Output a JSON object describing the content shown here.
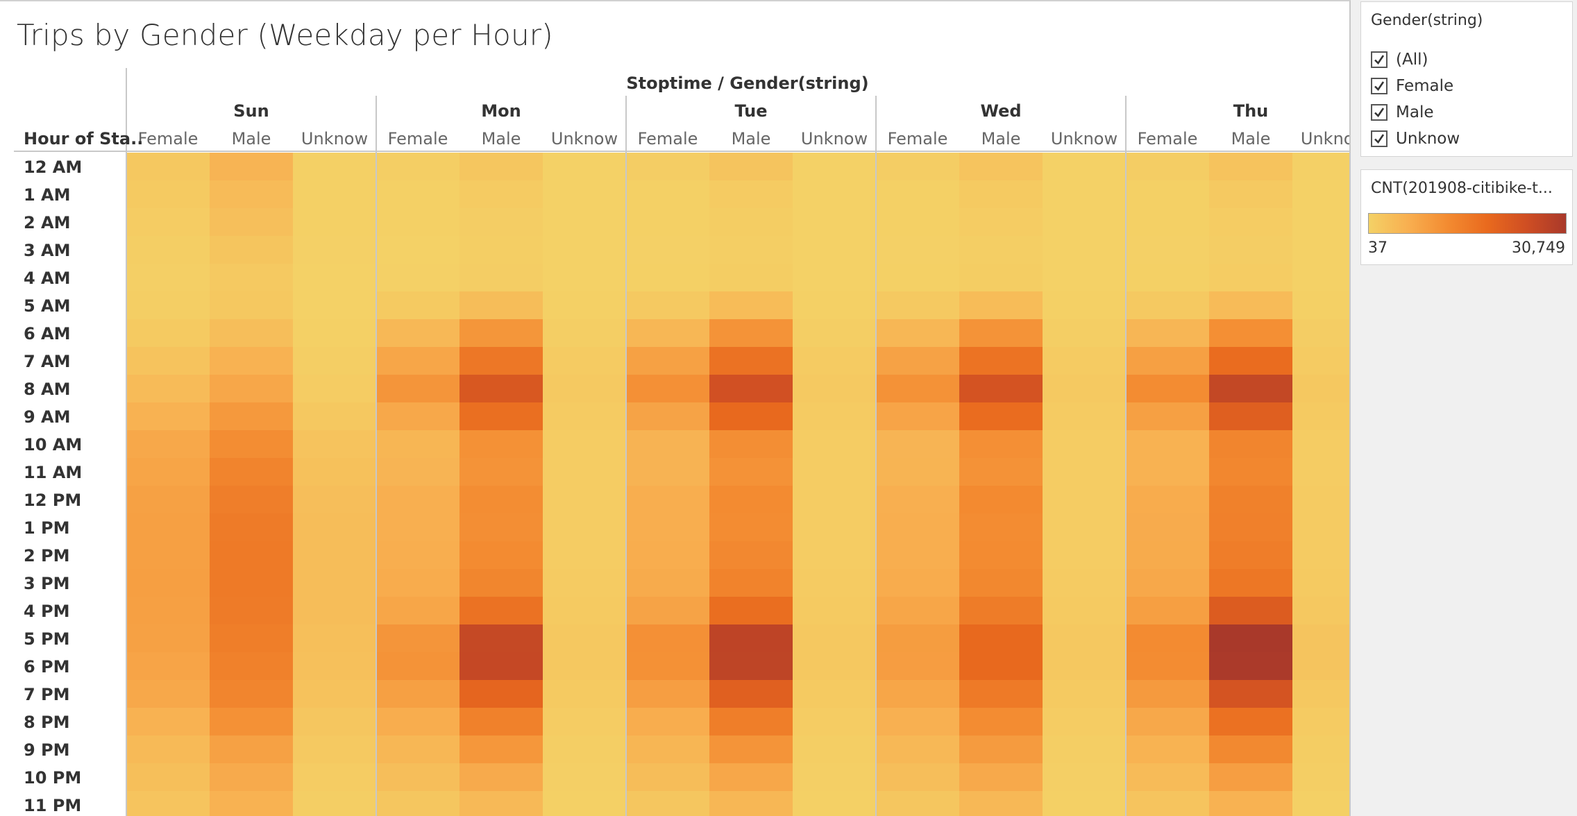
{
  "title": "Trips by Gender (Weekday per Hour)",
  "filter": {
    "title": "Gender(string)",
    "items": [
      {
        "label": "(All)",
        "checked": true
      },
      {
        "label": "Female",
        "checked": true
      },
      {
        "label": "Male",
        "checked": true
      },
      {
        "label": "Unknow",
        "checked": true
      }
    ]
  },
  "legend": {
    "title": "CNT(201908-citibike-t...",
    "min_label": "37",
    "max_label": "30,749",
    "colors": [
      "#f4d166",
      "#f8af50",
      "#f38b31",
      "#e96a1e",
      "#cf4e23",
      "#a9392a"
    ]
  },
  "chart_data": {
    "type": "heatmap",
    "title": "Trips by Gender (Weekday per Hour)",
    "top_header": "Stoptime / Gender(string)",
    "row_header": "Hour of Sta..",
    "days": [
      "Sun",
      "Mon",
      "Tue",
      "Wed",
      "Thu"
    ],
    "genders": [
      "Female",
      "Male",
      "Unknow"
    ],
    "hours": [
      "12 AM",
      "1 AM",
      "2 AM",
      "3 AM",
      "4 AM",
      "5 AM",
      "6 AM",
      "7 AM",
      "8 AM",
      "9 AM",
      "10 AM",
      "11 AM",
      "12 PM",
      "1 PM",
      "2 PM",
      "3 PM",
      "4 PM",
      "5 PM",
      "6 PM",
      "7 PM",
      "8 PM",
      "9 PM",
      "10 PM",
      "11 PM"
    ],
    "color_range": [
      37,
      30749
    ],
    "values": {
      "Sun": {
        "Female": [
          1700,
          1300,
          900,
          500,
          400,
          500,
          1300,
          2600,
          4000,
          5700,
          7300,
          7900,
          8500,
          8800,
          8800,
          8900,
          8800,
          8500,
          8000,
          7300,
          5600,
          4200,
          3300,
          2400
        ],
        "Male": [
          5200,
          4000,
          3200,
          2200,
          1500,
          1600,
          3400,
          5600,
          7500,
          10000,
          12000,
          13600,
          14700,
          15300,
          15400,
          15400,
          15300,
          14800,
          14200,
          13400,
          11300,
          8600,
          7000,
          5600
        ],
        "Unknow": [
          300,
          250,
          200,
          150,
          100,
          100,
          250,
          600,
          1000,
          1700,
          2500,
          3000,
          3400,
          3600,
          3700,
          3700,
          3600,
          3300,
          3100,
          2700,
          2000,
          1400,
          1000,
          600
        ]
      },
      "Mon": {
        "Female": [
          600,
          300,
          200,
          100,
          150,
          1300,
          4500,
          7800,
          10600,
          7400,
          5000,
          5200,
          6200,
          6200,
          6300,
          6700,
          7800,
          10600,
          10900,
          8800,
          6500,
          4800,
          3400,
          2000
        ],
        "Male": [
          2000,
          1100,
          700,
          500,
          700,
          3600,
          10500,
          16000,
          22500,
          17600,
          11300,
          11000,
          12000,
          11800,
          12300,
          13300,
          17000,
          26200,
          26300,
          19500,
          14200,
          10300,
          7000,
          4300
        ],
        "Unknow": [
          100,
          60,
          40,
          37,
          40,
          200,
          600,
          1100,
          1400,
          1100,
          900,
          900,
          1000,
          1000,
          1000,
          1100,
          1300,
          1600,
          1600,
          1300,
          900,
          600,
          400,
          200
        ]
      },
      "Tue": {
        "Female": [
          700,
          300,
          200,
          150,
          200,
          1500,
          4800,
          8500,
          11400,
          8200,
          5400,
          5400,
          6300,
          6400,
          6500,
          6900,
          8200,
          11400,
          11300,
          9000,
          6600,
          5000,
          3600,
          2100
        ],
        "Male": [
          2300,
          1200,
          800,
          600,
          800,
          3900,
          11000,
          17000,
          24200,
          18600,
          11800,
          11200,
          12400,
          12200,
          12800,
          13800,
          17800,
          27400,
          27300,
          20600,
          14800,
          10800,
          7600,
          4800
        ],
        "Unknow": [
          100,
          60,
          40,
          37,
          40,
          200,
          600,
          1100,
          1400,
          1100,
          900,
          900,
          1000,
          1000,
          1000,
          1100,
          1300,
          1600,
          1600,
          1300,
          900,
          600,
          400,
          200
        ]
      },
      "Wed": {
        "Female": [
          700,
          300,
          200,
          150,
          200,
          1500,
          4800,
          8400,
          11200,
          8000,
          5200,
          5300,
          6200,
          6300,
          6400,
          6700,
          7700,
          9300,
          9200,
          7700,
          6000,
          4600,
          3400,
          2000
        ],
        "Male": [
          2400,
          1300,
          900,
          600,
          800,
          3900,
          11000,
          16700,
          23500,
          18000,
          11600,
          11100,
          12600,
          12100,
          12400,
          12900,
          15200,
          18600,
          18600,
          15400,
          12200,
          9600,
          7200,
          4600
        ],
        "Unknow": [
          100,
          60,
          40,
          37,
          40,
          200,
          600,
          1100,
          1400,
          1100,
          900,
          900,
          1000,
          1000,
          1000,
          1100,
          1300,
          1600,
          1600,
          1300,
          900,
          600,
          400,
          200
        ]
      },
      "Thu": {
        "Female": [
          700,
          300,
          200,
          150,
          200,
          1500,
          4900,
          8700,
          12100,
          8700,
          5600,
          5700,
          6700,
          6800,
          6900,
          7300,
          8900,
          12400,
          12100,
          9800,
          7400,
          5500,
          4000,
          2400
        ],
        "Male": [
          2600,
          1400,
          900,
          700,
          900,
          4000,
          11700,
          18000,
          26500,
          20800,
          13400,
          13000,
          14200,
          14300,
          14900,
          16100,
          21500,
          30749,
          30400,
          23400,
          17200,
          12700,
          9000,
          5700
        ],
        "Unknow": [
          150,
          80,
          50,
          40,
          50,
          250,
          700,
          1200,
          1600,
          1300,
          1000,
          1000,
          1100,
          1100,
          1200,
          1300,
          1600,
          2300,
          2300,
          1700,
          1200,
          800,
          500,
          300
        ]
      }
    }
  }
}
